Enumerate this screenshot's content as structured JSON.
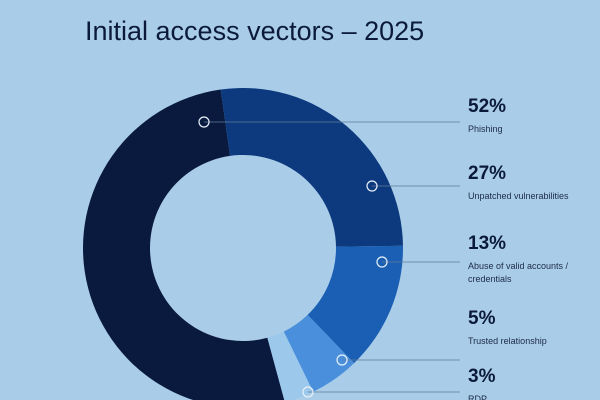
{
  "chart_data": {
    "type": "pie",
    "title": "Initial access vectors – 2025",
    "categories": [
      "Phishing",
      "Unpatched vulnerabilities",
      "Abuse of valid accounts / credentials",
      "Trusted relationship",
      "RDP"
    ],
    "values": [
      52,
      27,
      13,
      5,
      3
    ],
    "value_labels": [
      "52%",
      "27%",
      "13%",
      "5%",
      "3%"
    ],
    "colors": [
      "#0a1a3f",
      "#0d3a7e",
      "#1a5fb4",
      "#4a8fdc",
      "#9cc8ec"
    ]
  }
}
